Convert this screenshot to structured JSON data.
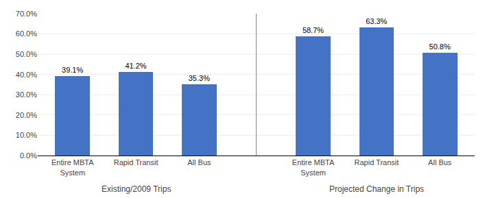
{
  "chart_data": {
    "type": "bar",
    "categories": [
      "Entire MBTA\nSystem",
      "Rapid Transit",
      "All Bus",
      "Entire MBTA\nSystem",
      "Rapid Transit",
      "All Bus"
    ],
    "values": [
      0.391,
      0.412,
      0.353,
      0.587,
      0.633,
      0.508
    ],
    "value_labels": [
      "39.1%",
      "41.2%",
      "35.3%",
      "58.7%",
      "63.3%",
      "50.8%"
    ],
    "data_labels": true,
    "color": "#4472C4",
    "annotations": [
      "Existing/2009 Trips",
      "Projected Change in Trips"
    ],
    "ylim": [
      0,
      0.7
    ],
    "yticks": [
      {
        "value": 0.0,
        "label": "0.0%"
      },
      {
        "value": 0.1,
        "label": "10.0%"
      },
      {
        "value": 0.2,
        "label": "20.0%"
      },
      {
        "value": 0.3,
        "label": "30.0%"
      },
      {
        "value": 0.4,
        "label": "40.0%"
      },
      {
        "value": 0.5,
        "label": "50.0%"
      },
      {
        "value": 0.6,
        "label": "60.0%"
      },
      {
        "value": 0.7,
        "label": "70.0%"
      }
    ],
    "grid": true
  }
}
